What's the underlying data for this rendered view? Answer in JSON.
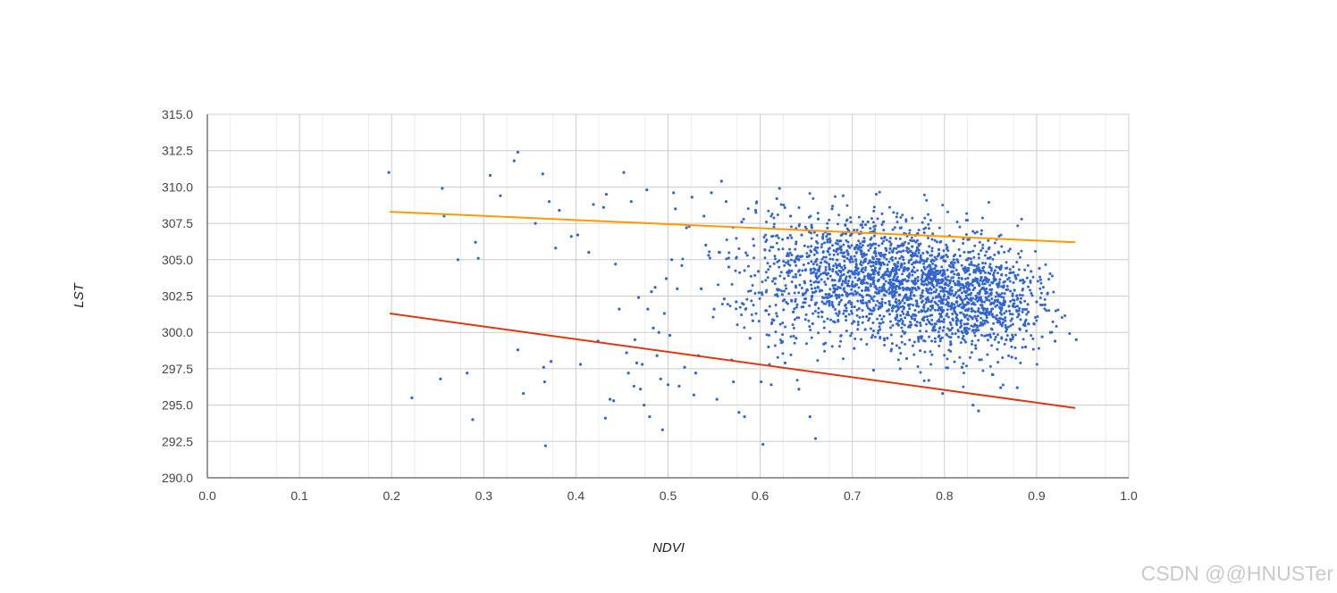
{
  "watermark": "CSDN @@HNUSTer",
  "chart_data": {
    "type": "scatter",
    "title": "",
    "xlabel": "NDVI",
    "ylabel": "LST",
    "xlim": [
      0.0,
      1.0
    ],
    "ylim": [
      290.0,
      315.0
    ],
    "xticks": [
      "0.0",
      "0.1",
      "0.2",
      "0.3",
      "0.4",
      "0.5",
      "0.6",
      "0.7",
      "0.8",
      "0.9",
      "1.0"
    ],
    "yticks": [
      "290.0",
      "292.5",
      "295.0",
      "297.5",
      "300.0",
      "302.5",
      "305.0",
      "307.5",
      "310.0",
      "312.5",
      "315.0"
    ],
    "grid": true,
    "series": [
      {
        "kind": "points",
        "color": "#3366cc",
        "points": [
          [
            0.197,
            311.0
          ],
          [
            0.255,
            309.9
          ],
          [
            0.257,
            308.0
          ],
          [
            0.222,
            295.5
          ],
          [
            0.253,
            296.8
          ],
          [
            0.282,
            297.2
          ],
          [
            0.288,
            294.0
          ],
          [
            0.291,
            306.2
          ],
          [
            0.294,
            305.1
          ],
          [
            0.272,
            305.0
          ],
          [
            0.307,
            310.8
          ],
          [
            0.318,
            309.4
          ],
          [
            0.333,
            311.8
          ],
          [
            0.337,
            312.4
          ],
          [
            0.337,
            298.8
          ],
          [
            0.343,
            295.8
          ],
          [
            0.356,
            307.5
          ],
          [
            0.364,
            310.9
          ],
          [
            0.365,
            297.6
          ],
          [
            0.366,
            296.6
          ],
          [
            0.367,
            292.2
          ],
          [
            0.371,
            309.0
          ],
          [
            0.373,
            298.0
          ],
          [
            0.378,
            305.8
          ],
          [
            0.382,
            308.4
          ],
          [
            0.395,
            306.6
          ],
          [
            0.402,
            306.7
          ],
          [
            0.405,
            297.8
          ],
          [
            0.414,
            305.5
          ],
          [
            0.419,
            308.8
          ],
          [
            0.424,
            299.4
          ],
          [
            0.43,
            308.6
          ],
          [
            0.432,
            294.1
          ],
          [
            0.433,
            309.5
          ],
          [
            0.437,
            295.4
          ],
          [
            0.441,
            295.3
          ],
          [
            0.443,
            304.7
          ],
          [
            0.447,
            301.6
          ],
          [
            0.452,
            311.0
          ],
          [
            0.455,
            298.6
          ],
          [
            0.457,
            297.2
          ],
          [
            0.46,
            309.0
          ],
          [
            0.463,
            296.3
          ],
          [
            0.464,
            299.5
          ],
          [
            0.466,
            297.9
          ],
          [
            0.468,
            302.4
          ],
          [
            0.47,
            296.1
          ],
          [
            0.472,
            297.8
          ],
          [
            0.474,
            295.0
          ],
          [
            0.477,
            309.8
          ],
          [
            0.478,
            301.6
          ],
          [
            0.48,
            294.2
          ],
          [
            0.482,
            302.8
          ],
          [
            0.484,
            300.3
          ],
          [
            0.486,
            303.1
          ],
          [
            0.488,
            298.4
          ],
          [
            0.49,
            300.0
          ],
          [
            0.492,
            296.8
          ],
          [
            0.494,
            293.3
          ],
          [
            0.496,
            301.3
          ],
          [
            0.498,
            303.7
          ],
          [
            0.5,
            296.4
          ],
          [
            0.502,
            299.8
          ],
          [
            0.504,
            305.0
          ],
          [
            0.506,
            309.6
          ],
          [
            0.508,
            308.5
          ],
          [
            0.51,
            303.0
          ],
          [
            0.512,
            296.3
          ],
          [
            0.515,
            304.6
          ],
          [
            0.518,
            297.6
          ],
          [
            0.52,
            307.2
          ],
          [
            0.523,
            307.3
          ],
          [
            0.526,
            309.3
          ],
          [
            0.528,
            295.7
          ],
          [
            0.53,
            297.2
          ],
          [
            0.533,
            298.4
          ],
          [
            0.536,
            303.0
          ],
          [
            0.539,
            308.0
          ],
          [
            0.541,
            306.0
          ],
          [
            0.544,
            305.3
          ],
          [
            0.547,
            309.6
          ],
          [
            0.55,
            301.6
          ],
          [
            0.553,
            295.4
          ],
          [
            0.556,
            305.5
          ],
          [
            0.558,
            310.4
          ],
          [
            0.561,
            302.3
          ],
          [
            0.563,
            309.0
          ],
          [
            0.566,
            304.5
          ],
          [
            0.569,
            298.1
          ],
          [
            0.571,
            296.6
          ],
          [
            0.574,
            302.1
          ],
          [
            0.577,
            294.5
          ],
          [
            0.58,
            307.6
          ],
          [
            0.583,
            294.2
          ],
          [
            0.586,
            305.3
          ],
          [
            0.589,
            299.6
          ],
          [
            0.592,
            300.8
          ],
          [
            0.595,
            308.4
          ],
          [
            0.598,
            304.2
          ],
          [
            0.601,
            296.6
          ],
          [
            0.603,
            292.3
          ],
          [
            0.606,
            301.5
          ],
          [
            0.609,
            299.0
          ],
          [
            0.612,
            296.4
          ],
          [
            0.615,
            303.7
          ],
          [
            0.618,
            309.2
          ],
          [
            0.621,
            309.9
          ],
          [
            0.624,
            302.6
          ],
          [
            0.627,
            297.9
          ],
          [
            0.63,
            306.5
          ],
          [
            0.633,
            308.0
          ],
          [
            0.636,
            301.4
          ],
          [
            0.639,
            299.6
          ],
          [
            0.642,
            296.1
          ],
          [
            0.645,
            306.7
          ],
          [
            0.648,
            303.5
          ],
          [
            0.651,
            305.2
          ],
          [
            0.654,
            294.2
          ],
          [
            0.657,
            300.6
          ],
          [
            0.66,
            292.7
          ],
          [
            0.663,
            307.8
          ],
          [
            0.666,
            304.8
          ],
          [
            0.669,
            299.2
          ],
          [
            0.672,
            306.6
          ],
          [
            0.675,
            302.0
          ],
          [
            0.678,
            308.5
          ],
          [
            0.681,
            300.7
          ],
          [
            0.684,
            305.7
          ],
          [
            0.687,
            303.7
          ],
          [
            0.69,
            309.4
          ],
          [
            0.693,
            301.1
          ],
          [
            0.696,
            307.0
          ],
          [
            0.699,
            304.2
          ],
          [
            0.702,
            298.9
          ],
          [
            0.705,
            306.0
          ],
          [
            0.708,
            302.6
          ],
          [
            0.711,
            305.2
          ],
          [
            0.714,
            300.2
          ],
          [
            0.717,
            307.6
          ],
          [
            0.72,
            303.2
          ],
          [
            0.723,
            297.4
          ],
          [
            0.726,
            309.5
          ],
          [
            0.729,
            304.8
          ],
          [
            0.732,
            301.8
          ],
          [
            0.735,
            306.5
          ],
          [
            0.738,
            299.6
          ],
          [
            0.741,
            303.9
          ],
          [
            0.744,
            305.6
          ],
          [
            0.747,
            302.1
          ],
          [
            0.75,
            300.8
          ],
          [
            0.753,
            307.2
          ],
          [
            0.756,
            304.4
          ],
          [
            0.759,
            298.2
          ],
          [
            0.762,
            303.0
          ],
          [
            0.765,
            305.9
          ],
          [
            0.768,
            301.2
          ],
          [
            0.771,
            306.8
          ],
          [
            0.774,
            299.7
          ],
          [
            0.777,
            304.1
          ],
          [
            0.78,
            302.3
          ],
          [
            0.783,
            296.7
          ],
          [
            0.786,
            305.3
          ],
          [
            0.789,
            300.4
          ],
          [
            0.792,
            303.6
          ],
          [
            0.795,
            301.7
          ],
          [
            0.798,
            295.8
          ],
          [
            0.801,
            304.9
          ],
          [
            0.804,
            302.0
          ],
          [
            0.807,
            299.2
          ],
          [
            0.81,
            306.3
          ],
          [
            0.813,
            301.0
          ],
          [
            0.816,
            303.4
          ],
          [
            0.819,
            297.6
          ],
          [
            0.822,
            300.3
          ],
          [
            0.825,
            305.0
          ],
          [
            0.828,
            302.6
          ],
          [
            0.831,
            295.0
          ],
          [
            0.834,
            298.9
          ],
          [
            0.837,
            294.6
          ],
          [
            0.84,
            303.8
          ],
          [
            0.843,
            301.3
          ],
          [
            0.846,
            299.8
          ],
          [
            0.849,
            304.5
          ],
          [
            0.852,
            297.1
          ],
          [
            0.855,
            302.2
          ],
          [
            0.858,
            300.7
          ],
          [
            0.861,
            296.2
          ],
          [
            0.864,
            303.1
          ],
          [
            0.867,
            299.5
          ],
          [
            0.87,
            301.8
          ],
          [
            0.873,
            298.3
          ],
          [
            0.876,
            302.9
          ],
          [
            0.879,
            296.2
          ],
          [
            0.882,
            300.2
          ],
          [
            0.885,
            303.6
          ],
          [
            0.888,
            299.0
          ],
          [
            0.891,
            301.4
          ],
          [
            0.894,
            304.2
          ],
          [
            0.897,
            300.6
          ],
          [
            0.9,
            302.1
          ],
          [
            0.903,
            304.4
          ],
          [
            0.906,
            299.7
          ],
          [
            0.909,
            301.9
          ],
          [
            0.912,
            302.7
          ],
          [
            0.915,
            300.0
          ],
          [
            0.92,
            299.4
          ],
          [
            0.943,
            299.5
          ]
        ]
      },
      {
        "kind": "dense-cloud",
        "color": "#3366cc",
        "note_free": true,
        "clusters": [
          {
            "cx": 0.72,
            "cy": 304.2,
            "sx": 0.045,
            "sy": 2.0,
            "n": 900,
            "seed": 11
          },
          {
            "cx": 0.8,
            "cy": 302.6,
            "sx": 0.045,
            "sy": 2.0,
            "n": 900,
            "seed": 23
          },
          {
            "cx": 0.64,
            "cy": 304.0,
            "sx": 0.04,
            "sy": 2.6,
            "n": 320,
            "seed": 37
          },
          {
            "cx": 0.86,
            "cy": 301.5,
            "sx": 0.03,
            "sy": 1.8,
            "n": 260,
            "seed": 53
          }
        ]
      }
    ],
    "lines": [
      {
        "name": "",
        "color": "#ff9900",
        "x": [
          0.198,
          0.942
        ],
        "y": [
          308.3,
          306.2
        ]
      },
      {
        "name": "",
        "color": "#dc3912",
        "x": [
          0.198,
          0.942
        ],
        "y": [
          301.3,
          294.8
        ]
      }
    ]
  }
}
